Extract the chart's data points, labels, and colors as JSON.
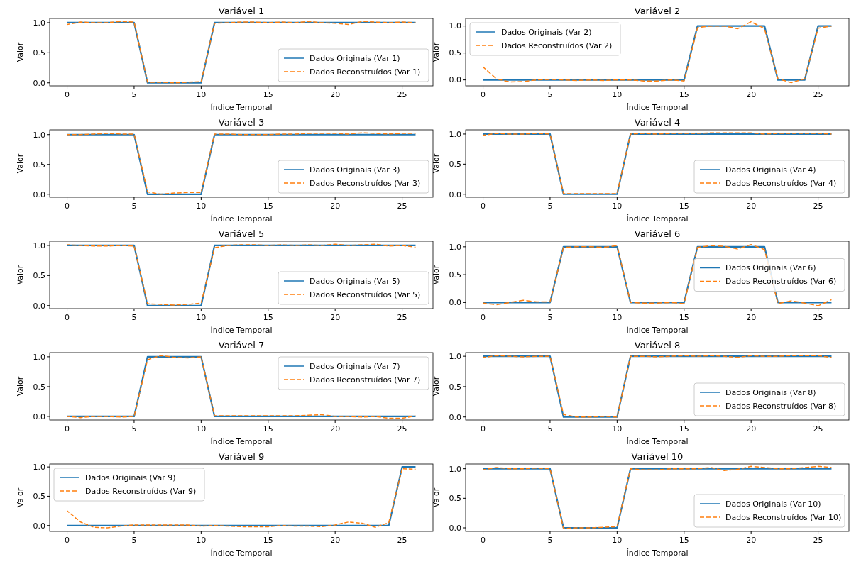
{
  "chart_data": [
    {
      "type": "line",
      "title": "Variável 1",
      "xlabel": "Índice Temporal",
      "ylabel": "Valor",
      "legend": "bottom right",
      "x": [
        0,
        1,
        2,
        3,
        4,
        5,
        6,
        7,
        8,
        9,
        10,
        11,
        12,
        13,
        14,
        15,
        16,
        17,
        18,
        19,
        20,
        21,
        22,
        23,
        24,
        25,
        26
      ],
      "xlim": [
        -1.3,
        27.3
      ],
      "xticks": [
        0,
        5,
        10,
        15,
        20,
        25
      ],
      "ylim": [
        -0.05,
        1.07
      ],
      "yticks": [
        {
          "value": 0,
          "label": "0.0"
        },
        {
          "value": 0.5,
          "label": "0.5"
        },
        {
          "value": 1,
          "label": "1.0"
        }
      ],
      "series": [
        {
          "name": "Dados Originais (Var 1)",
          "color": "#1f77b4",
          "line_style": "solid",
          "values": [
            1,
            1,
            1,
            1,
            1,
            1,
            0,
            0,
            0,
            0,
            0,
            1,
            1,
            1,
            1,
            1,
            1,
            1,
            1,
            1,
            1,
            1,
            1,
            1,
            1,
            1,
            1
          ]
        },
        {
          "name": "Dados Reconstruídos (Var 1)",
          "color": "#ff7f0e",
          "line_style": "dashed",
          "values": [
            0.97,
            1.01,
            1.0,
            1.0,
            1.02,
            1.01,
            0.01,
            0.01,
            0.0,
            0.01,
            0.02,
            0.99,
            1.0,
            1.01,
            1.01,
            1.0,
            1.01,
            1.0,
            1.02,
            1.0,
            0.99,
            0.97,
            1.02,
            1.01,
            1.0,
            1.01,
            1.0
          ]
        }
      ]
    },
    {
      "type": "line",
      "title": "Variável 2",
      "xlabel": "Índice Temporal",
      "ylabel": "Valor",
      "legend": "top left",
      "x": [
        0,
        1,
        2,
        3,
        4,
        5,
        6,
        7,
        8,
        9,
        10,
        11,
        12,
        13,
        14,
        15,
        16,
        17,
        18,
        19,
        20,
        21,
        22,
        23,
        24,
        25,
        26
      ],
      "xlim": [
        -1.3,
        27.3
      ],
      "xticks": [
        0,
        5,
        10,
        15,
        20,
        25
      ],
      "ylim": [
        -0.11,
        1.14
      ],
      "yticks": [
        {
          "value": 0,
          "label": "0.0"
        },
        {
          "value": 0.5,
          "label": "0.5"
        },
        {
          "value": 1,
          "label": "1.0"
        }
      ],
      "series": [
        {
          "name": "Dados Originais (Var 2)",
          "color": "#1f77b4",
          "line_style": "solid",
          "values": [
            0,
            0,
            0,
            0,
            0,
            0,
            0,
            0,
            0,
            0,
            0,
            0,
            0,
            0,
            0,
            0,
            1,
            1,
            1,
            1,
            1,
            1,
            0,
            0,
            0,
            1,
            1
          ]
        },
        {
          "name": "Dados Reconstruídos (Var 2)",
          "color": "#ff7f0e",
          "line_style": "dashed",
          "values": [
            0.24,
            0.02,
            -0.04,
            -0.03,
            0.0,
            0.01,
            0.0,
            -0.01,
            0.0,
            -0.01,
            0.0,
            0.0,
            -0.02,
            -0.02,
            0.0,
            -0.02,
            0.97,
            1.0,
            1.0,
            0.95,
            1.08,
            0.95,
            0.02,
            -0.05,
            0.02,
            0.96,
            1.0
          ]
        }
      ]
    },
    {
      "type": "line",
      "title": "Variável 3",
      "xlabel": "Índice Temporal",
      "ylabel": "Valor",
      "legend": "bottom right",
      "x": [
        0,
        1,
        2,
        3,
        4,
        5,
        6,
        7,
        8,
        9,
        10,
        11,
        12,
        13,
        14,
        15,
        16,
        17,
        18,
        19,
        20,
        21,
        22,
        23,
        24,
        25,
        26
      ],
      "xlim": [
        -1.3,
        27.3
      ],
      "xticks": [
        0,
        5,
        10,
        15,
        20,
        25
      ],
      "ylim": [
        -0.05,
        1.08
      ],
      "yticks": [
        {
          "value": 0,
          "label": "0.0"
        },
        {
          "value": 0.5,
          "label": "0.5"
        },
        {
          "value": 1,
          "label": "1.0"
        }
      ],
      "series": [
        {
          "name": "Dados Originais (Var 3)",
          "color": "#1f77b4",
          "line_style": "solid",
          "values": [
            1,
            1,
            1,
            1,
            1,
            1,
            0,
            0,
            0,
            0,
            0,
            1,
            1,
            1,
            1,
            1,
            1,
            1,
            1,
            1,
            1,
            1,
            1,
            1,
            1,
            1,
            1
          ]
        },
        {
          "name": "Dados Reconstruídos (Var 3)",
          "color": "#ff7f0e",
          "line_style": "dashed",
          "values": [
            1.0,
            1.0,
            1.01,
            1.02,
            1.01,
            1.01,
            0.04,
            0.0,
            0.02,
            0.03,
            0.03,
            1.01,
            1.01,
            1.0,
            1.0,
            1.0,
            1.01,
            1.01,
            1.02,
            1.02,
            1.02,
            1.01,
            1.03,
            1.02,
            1.01,
            1.02,
            1.02
          ]
        }
      ]
    },
    {
      "type": "line",
      "title": "Variável 4",
      "xlabel": "Índice Temporal",
      "ylabel": "Valor",
      "legend": "bottom right",
      "x": [
        0,
        1,
        2,
        3,
        4,
        5,
        6,
        7,
        8,
        9,
        10,
        11,
        12,
        13,
        14,
        15,
        16,
        17,
        18,
        19,
        20,
        21,
        22,
        23,
        24,
        25,
        26
      ],
      "xlim": [
        -1.3,
        27.3
      ],
      "xticks": [
        0,
        5,
        10,
        15,
        20,
        25
      ],
      "ylim": [
        -0.05,
        1.07
      ],
      "yticks": [
        {
          "value": 0,
          "label": "0.0"
        },
        {
          "value": 0.5,
          "label": "0.5"
        },
        {
          "value": 1,
          "label": "1.0"
        }
      ],
      "series": [
        {
          "name": "Dados Originais (Var 4)",
          "color": "#1f77b4",
          "line_style": "solid",
          "values": [
            1,
            1,
            1,
            1,
            1,
            1,
            0,
            0,
            0,
            0,
            0,
            1,
            1,
            1,
            1,
            1,
            1,
            1,
            1,
            1,
            1,
            1,
            1,
            1,
            1,
            1,
            1
          ]
        },
        {
          "name": "Dados Reconstruídos (Var 4)",
          "color": "#ff7f0e",
          "line_style": "dashed",
          "values": [
            0.98,
            1.01,
            1.0,
            1.0,
            1.01,
            1.0,
            0.01,
            0.01,
            0.01,
            0.01,
            0.01,
            1.0,
            1.01,
            1.0,
            1.01,
            1.01,
            1.01,
            1.02,
            1.02,
            1.02,
            1.02,
            1.0,
            1.01,
            1.01,
            1.01,
            1.01,
            1.0
          ]
        }
      ]
    },
    {
      "type": "line",
      "title": "Variável 5",
      "xlabel": "Índice Temporal",
      "ylabel": "Valor",
      "legend": "bottom right",
      "x": [
        0,
        1,
        2,
        3,
        4,
        5,
        6,
        7,
        8,
        9,
        10,
        11,
        12,
        13,
        14,
        15,
        16,
        17,
        18,
        19,
        20,
        21,
        22,
        23,
        24,
        25,
        26
      ],
      "xlim": [
        -1.3,
        27.3
      ],
      "xticks": [
        0,
        5,
        10,
        15,
        20,
        25
      ],
      "ylim": [
        -0.05,
        1.07
      ],
      "yticks": [
        {
          "value": 0,
          "label": "0.0"
        },
        {
          "value": 0.5,
          "label": "0.5"
        },
        {
          "value": 1,
          "label": "1.0"
        }
      ],
      "series": [
        {
          "name": "Dados Originais (Var 5)",
          "color": "#1f77b4",
          "line_style": "solid",
          "values": [
            1,
            1,
            1,
            1,
            1,
            1,
            0,
            0,
            0,
            0,
            0,
            1,
            1,
            1,
            1,
            1,
            1,
            1,
            1,
            1,
            1,
            1,
            1,
            1,
            1,
            1,
            1
          ]
        },
        {
          "name": "Dados Reconstruídos (Var 5)",
          "color": "#ff7f0e",
          "line_style": "dashed",
          "values": [
            1.01,
            1.0,
            0.99,
            0.99,
            1.0,
            0.99,
            0.03,
            0.02,
            0.01,
            0.02,
            0.04,
            0.96,
            1.0,
            1.01,
            1.01,
            1.0,
            1.01,
            1.0,
            1.01,
            1.0,
            1.02,
            1.0,
            1.01,
            1.02,
            0.99,
            1.0,
            0.97
          ]
        }
      ]
    },
    {
      "type": "line",
      "title": "Variável 6",
      "xlabel": "Índice Temporal",
      "ylabel": "Valor",
      "legend": "right",
      "x": [
        0,
        1,
        2,
        3,
        4,
        5,
        6,
        7,
        8,
        9,
        10,
        11,
        12,
        13,
        14,
        15,
        16,
        17,
        18,
        19,
        20,
        21,
        22,
        23,
        24,
        25,
        26
      ],
      "xlim": [
        -1.3,
        27.3
      ],
      "xticks": [
        0,
        5,
        10,
        15,
        20,
        25
      ],
      "ylim": [
        -0.11,
        1.1
      ],
      "yticks": [
        {
          "value": 0,
          "label": "0.0"
        },
        {
          "value": 0.5,
          "label": "0.5"
        },
        {
          "value": 1,
          "label": "1.0"
        }
      ],
      "series": [
        {
          "name": "Dados Originais (Var 6)",
          "color": "#1f77b4",
          "line_style": "solid",
          "values": [
            0,
            0,
            0,
            0,
            0,
            0,
            1,
            1,
            1,
            1,
            1,
            0,
            0,
            0,
            0,
            0,
            1,
            1,
            1,
            1,
            1,
            1,
            0,
            0,
            0,
            0,
            0
          ]
        },
        {
          "name": "Dados Reconstruídos (Var 6)",
          "color": "#ff7f0e",
          "line_style": "dashed",
          "values": [
            -0.01,
            -0.04,
            0.0,
            0.04,
            0.01,
            0.01,
            0.99,
            1.0,
            1.0,
            0.99,
            1.02,
            0.0,
            -0.01,
            -0.01,
            0.0,
            -0.02,
            0.99,
            1.02,
            1.01,
            0.96,
            1.04,
            0.95,
            -0.02,
            0.03,
            -0.01,
            -0.06,
            0.05
          ]
        }
      ]
    },
    {
      "type": "line",
      "title": "Variável 7",
      "xlabel": "Índice Temporal",
      "ylabel": "Valor",
      "legend": "top right",
      "x": [
        0,
        1,
        2,
        3,
        4,
        5,
        6,
        7,
        8,
        9,
        10,
        11,
        12,
        13,
        14,
        15,
        16,
        17,
        18,
        19,
        20,
        21,
        22,
        23,
        24,
        25,
        26
      ],
      "xlim": [
        -1.3,
        27.3
      ],
      "xticks": [
        0,
        5,
        10,
        15,
        20,
        25
      ],
      "ylim": [
        -0.06,
        1.07
      ],
      "yticks": [
        {
          "value": 0,
          "label": "0.0"
        },
        {
          "value": 0.5,
          "label": "0.5"
        },
        {
          "value": 1,
          "label": "1.0"
        }
      ],
      "series": [
        {
          "name": "Dados Originais (Var 7)",
          "color": "#1f77b4",
          "line_style": "solid",
          "values": [
            0,
            0,
            0,
            0,
            0,
            0,
            1,
            1,
            1,
            1,
            1,
            0,
            0,
            0,
            0,
            0,
            0,
            0,
            0,
            0,
            0,
            0,
            0,
            0,
            0,
            0,
            0
          ]
        },
        {
          "name": "Dados Reconstruídos (Var 7)",
          "color": "#ff7f0e",
          "line_style": "dashed",
          "values": [
            0.0,
            -0.02,
            0.0,
            0.0,
            -0.01,
            0.0,
            0.95,
            1.02,
            0.99,
            0.98,
            1.0,
            0.01,
            0.01,
            0.01,
            0.01,
            0.01,
            0.01,
            0.01,
            0.02,
            0.03,
            0.0,
            0.0,
            -0.01,
            0.0,
            -0.03,
            -0.03,
            0.01
          ]
        }
      ]
    },
    {
      "type": "line",
      "title": "Variável 8",
      "xlabel": "Índice Temporal",
      "ylabel": "Valor",
      "legend": "bottom right",
      "x": [
        0,
        1,
        2,
        3,
        4,
        5,
        6,
        7,
        8,
        9,
        10,
        11,
        12,
        13,
        14,
        15,
        16,
        17,
        18,
        19,
        20,
        21,
        22,
        23,
        24,
        25,
        26
      ],
      "xlim": [
        -1.3,
        27.3
      ],
      "xticks": [
        0,
        5,
        10,
        15,
        20,
        25
      ],
      "ylim": [
        -0.05,
        1.06
      ],
      "yticks": [
        {
          "value": 0,
          "label": "0.0"
        },
        {
          "value": 0.5,
          "label": "0.5"
        },
        {
          "value": 1,
          "label": "1.0"
        }
      ],
      "series": [
        {
          "name": "Dados Originais (Var 8)",
          "color": "#1f77b4",
          "line_style": "solid",
          "values": [
            1,
            1,
            1,
            1,
            1,
            1,
            0,
            0,
            0,
            0,
            0,
            1,
            1,
            1,
            1,
            1,
            1,
            1,
            1,
            1,
            1,
            1,
            1,
            1,
            1,
            1,
            1
          ]
        },
        {
          "name": "Dados Reconstruídos (Var 8)",
          "color": "#ff7f0e",
          "line_style": "dashed",
          "values": [
            0.98,
            1.01,
            1.0,
            0.99,
            1.0,
            1.0,
            0.04,
            0.0,
            0.0,
            0.01,
            0.0,
            1.0,
            1.0,
            0.99,
            1.0,
            1.01,
            1.0,
            1.01,
            1.0,
            0.98,
            1.01,
            1.0,
            1.0,
            1.01,
            1.01,
            1.01,
            0.98
          ]
        }
      ]
    },
    {
      "type": "line",
      "title": "Variável 9",
      "xlabel": "Índice Temporal",
      "ylabel": "Valor",
      "legend": "top left",
      "x": [
        0,
        1,
        2,
        3,
        4,
        5,
        6,
        7,
        8,
        9,
        10,
        11,
        12,
        13,
        14,
        15,
        16,
        17,
        18,
        19,
        20,
        21,
        22,
        23,
        24,
        25,
        26
      ],
      "xlim": [
        -1.3,
        27.3
      ],
      "xticks": [
        0,
        5,
        10,
        15,
        20,
        25
      ],
      "ylim": [
        -0.1,
        1.05
      ],
      "yticks": [
        {
          "value": 0,
          "label": "0.0"
        },
        {
          "value": 0.5,
          "label": "0.5"
        },
        {
          "value": 1,
          "label": "1.0"
        }
      ],
      "series": [
        {
          "name": "Dados Originais (Var 9)",
          "color": "#1f77b4",
          "line_style": "solid",
          "values": [
            0,
            0,
            0,
            0,
            0,
            0,
            0,
            0,
            0,
            0,
            0,
            0,
            0,
            0,
            0,
            0,
            0,
            0,
            0,
            0,
            0,
            0,
            0,
            0,
            0,
            1,
            1
          ]
        },
        {
          "name": "Dados Reconstruídos (Var 9)",
          "color": "#ff7f0e",
          "line_style": "dashed",
          "values": [
            0.25,
            0.06,
            -0.03,
            -0.04,
            -0.01,
            0.01,
            0.01,
            0.01,
            0.01,
            0.01,
            -0.01,
            0.0,
            -0.01,
            -0.02,
            -0.02,
            -0.02,
            0.0,
            -0.01,
            -0.01,
            -0.02,
            0.01,
            0.06,
            0.04,
            -0.03,
            0.05,
            0.97,
            0.96
          ]
        }
      ]
    },
    {
      "type": "line",
      "title": "Variável 10",
      "xlabel": "Índice Temporal",
      "ylabel": "Valor",
      "legend": "bottom right",
      "x": [
        0,
        1,
        2,
        3,
        4,
        5,
        6,
        7,
        8,
        9,
        10,
        11,
        12,
        13,
        14,
        15,
        16,
        17,
        18,
        19,
        20,
        21,
        22,
        23,
        24,
        25,
        26
      ],
      "xlim": [
        -1.3,
        27.3
      ],
      "xticks": [
        0,
        5,
        10,
        15,
        20,
        25
      ],
      "ylim": [
        -0.06,
        1.08
      ],
      "yticks": [
        {
          "value": 0,
          "label": "0.0"
        },
        {
          "value": 0.5,
          "label": "0.5"
        },
        {
          "value": 1,
          "label": "1.0"
        }
      ],
      "series": [
        {
          "name": "Dados Originais (Var 10)",
          "color": "#1f77b4",
          "line_style": "solid",
          "values": [
            1,
            1,
            1,
            1,
            1,
            1,
            0,
            0,
            0,
            0,
            0,
            1,
            1,
            1,
            1,
            1,
            1,
            1,
            1,
            1,
            1,
            1,
            1,
            1,
            1,
            1,
            1
          ]
        },
        {
          "name": "Dados Reconstruídos (Var 10)",
          "color": "#ff7f0e",
          "line_style": "dashed",
          "values": [
            0.98,
            1.02,
            1.0,
            1.0,
            1.01,
            1.0,
            -0.01,
            0.0,
            0.0,
            0.01,
            0.02,
            1.0,
            0.98,
            0.98,
            1.0,
            1.0,
            1.0,
            1.02,
            0.97,
            0.99,
            1.04,
            1.02,
            1.0,
            1.0,
            1.02,
            1.04,
            1.02
          ]
        }
      ]
    }
  ]
}
